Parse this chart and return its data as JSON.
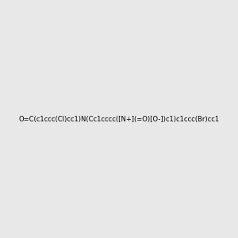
{
  "smiles": "O=C(c1ccc(Cl)cc1)N(Cc1cccc([N+](=O)[O-])c1)c1ccc(Br)cc1",
  "title": "",
  "background_color": "#e8e8e8",
  "figsize": [
    3.0,
    3.0
  ],
  "dpi": 100,
  "atom_colors": {
    "Br": "#b8860b",
    "Cl": "#228B22",
    "N": "#0000ff",
    "O": "#ff0000",
    "C": "#000000"
  }
}
